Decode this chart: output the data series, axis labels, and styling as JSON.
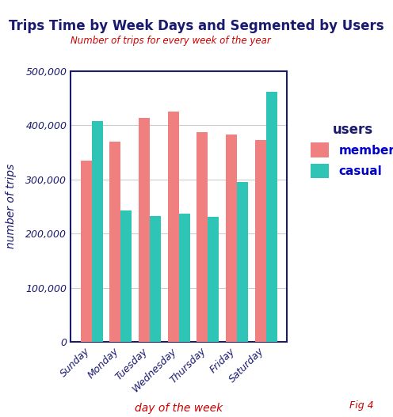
{
  "title": "Trips Time by Week Days and Segmented by Users",
  "subtitle": "Number of trips for every week of the year",
  "xlabel": "day of the week",
  "ylabel": "number of trips",
  "categories": [
    "Sunday",
    "Monday",
    "Tuesday",
    "Wednesday",
    "Thursday",
    "Friday",
    "Saturday"
  ],
  "member": [
    335000,
    370000,
    413000,
    425000,
    387000,
    382000,
    373000
  ],
  "casual": [
    408000,
    243000,
    232000,
    236000,
    231000,
    295000,
    462000
  ],
  "member_color": "#F08080",
  "casual_color": "#2EC4B6",
  "title_color": "#1a1a6e",
  "subtitle_color": "#cc0000",
  "xlabel_color": "#cc0000",
  "ylabel_color": "#1a1a6e",
  "tick_color": "#1a1a6e",
  "legend_title_color": "#1a1a6e",
  "legend_label_color": "#0000cc",
  "annotation": "Fig 4",
  "annotation_color": "#cc0000",
  "bg_color": "#ffffff",
  "plot_bg_color": "#ffffff",
  "grid_color": "#cccccc",
  "spine_color": "#1a1a6e",
  "ylim": [
    0,
    500000
  ],
  "yticks": [
    0,
    100000,
    200000,
    300000,
    400000,
    500000
  ]
}
